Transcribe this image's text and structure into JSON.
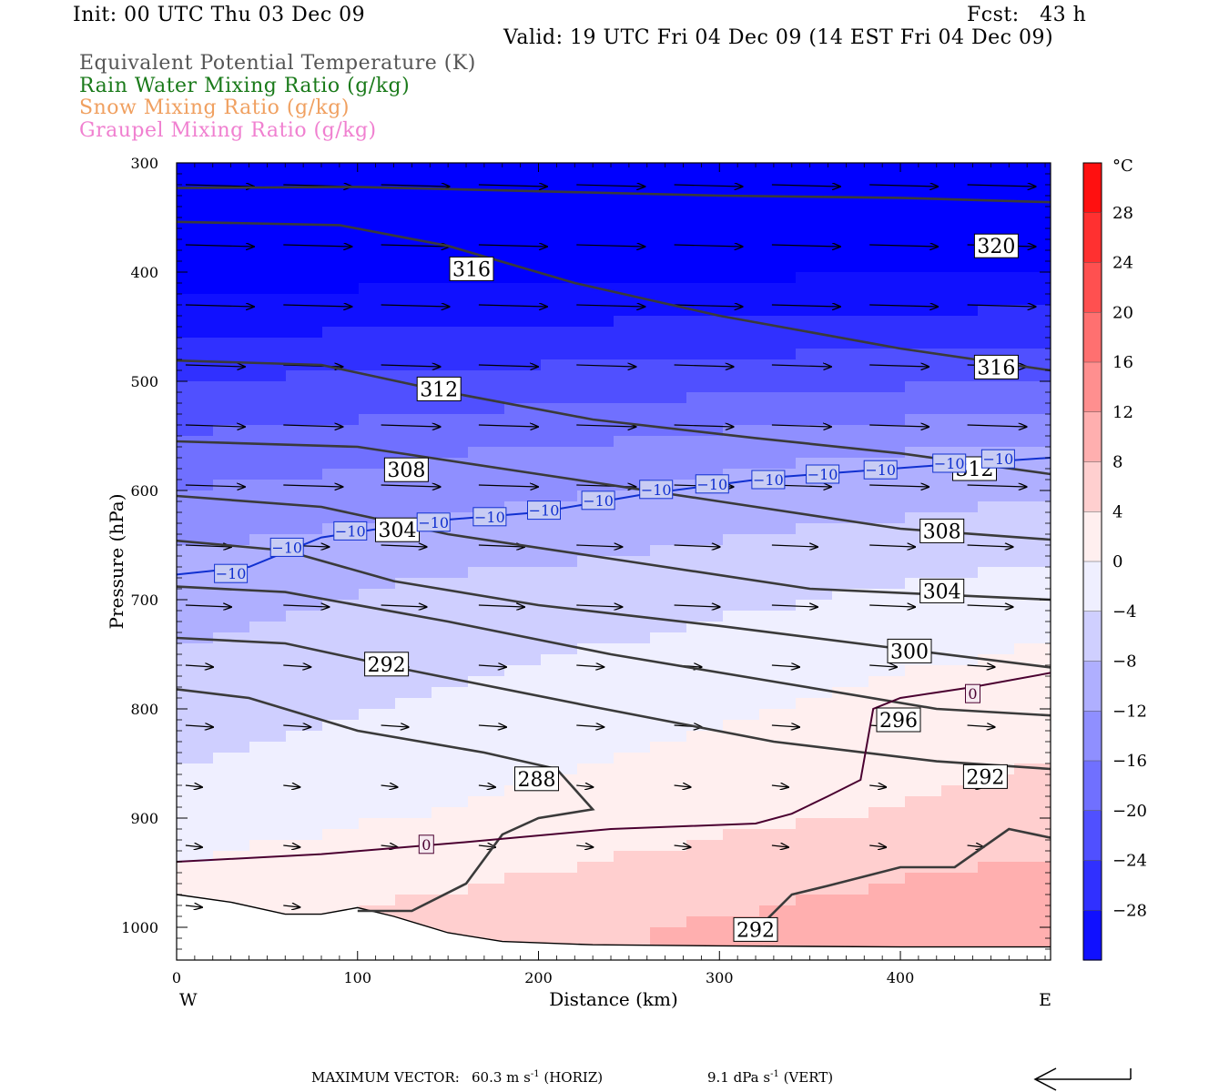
{
  "header": {
    "init": "Init: 00 UTC Thu 03 Dec 09",
    "fcst": "Fcst:   43 h",
    "valid": "Valid: 19 UTC Fri 04 Dec 09 (14 EST Fri 04 Dec 09)"
  },
  "legend_lines": [
    {
      "text": "Equivalent Potential Temperature (K)",
      "color": "#555555"
    },
    {
      "text": "Rain Water Mixing Ratio (g/kg)",
      "color": "#1a7a1a"
    },
    {
      "text": "Snow Mixing Ratio (g/kg)",
      "color": "#f0a060"
    },
    {
      "text": "Graupel Mixing Ratio (g/kg)",
      "color": "#f080d0"
    }
  ],
  "footer": {
    "max_vector_label": "MAXIMUM VECTOR:",
    "horiz": "60.3 m s",
    "horiz_tail": " (HORIZ)",
    "vert": "9.1 dPa s",
    "vert_tail": " (VERT)",
    "exp": "-1"
  },
  "chart_data": {
    "type": "contour",
    "xlabel": "Distance (km)",
    "ylabel": "Pressure (hPa)",
    "xlim": [
      0,
      483
    ],
    "ylim": [
      1030,
      300
    ],
    "x_ticks": [
      0,
      100,
      200,
      300,
      400
    ],
    "y_ticks": [
      300,
      400,
      500,
      600,
      700,
      800,
      900,
      1000
    ],
    "x_end_labels": {
      "left": "W",
      "right": "E"
    },
    "colorbar": {
      "unit": "°C",
      "range": [
        -32,
        32
      ],
      "tick_values": [
        28,
        24,
        20,
        16,
        12,
        8,
        4,
        0,
        -4,
        -8,
        -12,
        -16,
        -20,
        -24,
        -28
      ],
      "tick_labels": [
        "28",
        "24",
        "20",
        "16",
        "12",
        "8",
        "4",
        "0",
        "−4",
        "−8",
        "−12",
        "−16",
        "−20",
        "−24",
        "−28"
      ]
    },
    "theta_e_labels": [
      {
        "text": "320",
        "x": 453,
        "p": 376
      },
      {
        "text": "316",
        "x": 163,
        "p": 397
      },
      {
        "text": "316",
        "x": 453,
        "p": 487
      },
      {
        "text": "312",
        "x": 145,
        "p": 507
      },
      {
        "text": "312",
        "x": 441,
        "p": 580
      },
      {
        "text": "308",
        "x": 127,
        "p": 581
      },
      {
        "text": "308",
        "x": 423,
        "p": 637
      },
      {
        "text": "304",
        "x": 122,
        "p": 636
      },
      {
        "text": "304",
        "x": 423,
        "p": 692
      },
      {
        "text": "300",
        "x": 405,
        "p": 747
      },
      {
        "text": "296",
        "x": 399,
        "p": 810
      },
      {
        "text": "292",
        "x": 116,
        "p": 759
      },
      {
        "text": "292",
        "x": 447,
        "p": 862
      },
      {
        "text": "292",
        "x": 320,
        "p": 1002
      },
      {
        "text": "288",
        "x": 199,
        "p": 864
      }
    ],
    "temp_labels": [
      {
        "text": "−10",
        "x": 30,
        "p": 676
      },
      {
        "text": "−10",
        "x": 61,
        "p": 652
      },
      {
        "text": "−10",
        "x": 96,
        "p": 637
      },
      {
        "text": "−10",
        "x": 142,
        "p": 629
      },
      {
        "text": "−10",
        "x": 173,
        "p": 624
      },
      {
        "text": "−10",
        "x": 203,
        "p": 618
      },
      {
        "text": "−10",
        "x": 233,
        "p": 609
      },
      {
        "text": "−10",
        "x": 265,
        "p": 599
      },
      {
        "text": "−10",
        "x": 296,
        "p": 594
      },
      {
        "text": "−10",
        "x": 327,
        "p": 590
      },
      {
        "text": "−10",
        "x": 357,
        "p": 585
      },
      {
        "text": "−10",
        "x": 389,
        "p": 581
      },
      {
        "text": "−10",
        "x": 427,
        "p": 575
      },
      {
        "text": "−10",
        "x": 454,
        "p": 571
      },
      {
        "text": "0",
        "x": 138,
        "p": 924
      },
      {
        "text": "0",
        "x": 440,
        "p": 786
      }
    ]
  }
}
